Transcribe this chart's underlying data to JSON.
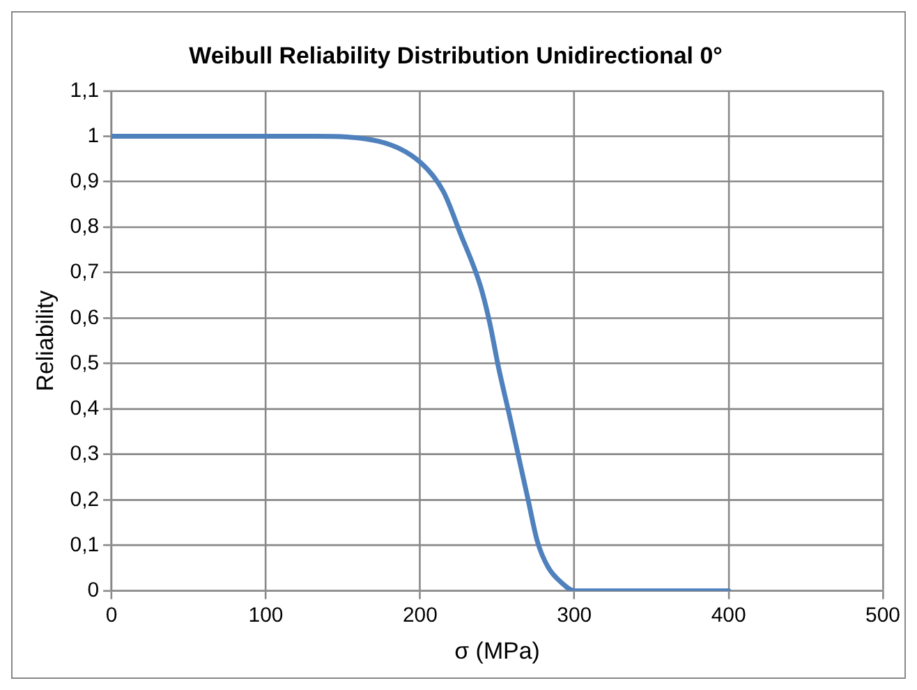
{
  "chart_data": {
    "type": "line",
    "title": "Weibull Reliability Distribution Unidirectional 0°",
    "xlabel": "σ (MPa)",
    "ylabel": "Reliability",
    "series": [
      {
        "color": "#4f81bd",
        "x": [
          0,
          50,
          100,
          132,
          173,
          200,
          215,
          226,
          239,
          245,
          251,
          258,
          264,
          270,
          276,
          283,
          292,
          300,
          350,
          400
        ],
        "values": [
          1,
          1,
          1,
          1,
          0.989,
          0.943,
          0.879,
          0.787,
          0.672,
          0.592,
          0.489,
          0.385,
          0.293,
          0.201,
          0.109,
          0.052,
          0.017,
          0,
          0,
          0
        ]
      }
    ],
    "xlim": [
      0,
      500
    ],
    "xticks": [
      0,
      100,
      200,
      300,
      400,
      500
    ],
    "ylim": [
      0,
      1.1
    ],
    "yticks": [
      0,
      {
        "value": 0.1,
        "label": "0,1"
      },
      {
        "value": 0.2,
        "label": "0,2"
      },
      {
        "value": 0.3,
        "label": "0,3"
      },
      {
        "value": 0.4,
        "label": "0,4"
      },
      {
        "value": 0.5,
        "label": "0,5"
      },
      {
        "value": 0.6,
        "label": "0,6"
      },
      {
        "value": 0.7,
        "label": "0,7"
      },
      {
        "value": 0.8,
        "label": "0,8"
      },
      {
        "value": 0.9,
        "label": "0,9"
      },
      1,
      {
        "value": 1.1,
        "label": "1,1"
      }
    ],
    "grid": true,
    "legend": false,
    "marker": "none",
    "line_style": "solid"
  }
}
